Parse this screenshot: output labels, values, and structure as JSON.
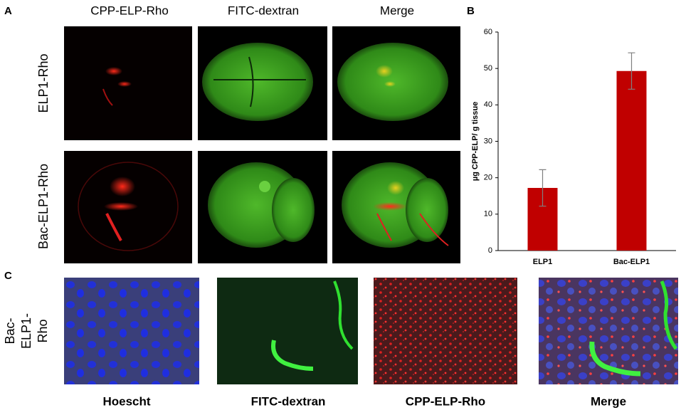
{
  "panel_labels": [
    "A",
    "B",
    "C"
  ],
  "panel_a": {
    "columns": [
      "CPP-ELP-Rho",
      "FITC-dextran",
      "Merge"
    ],
    "rows": [
      "ELP1-Rho",
      "Bac-ELP1-Rho"
    ]
  },
  "panel_c": {
    "row_label_lines": [
      "Bac-",
      "ELP1-",
      "Rho"
    ],
    "columns": [
      "Hoescht",
      "FITC-dextran",
      "CPP-ELP-Rho",
      "Merge"
    ]
  },
  "chart_data": {
    "type": "bar",
    "y_label": "µg CPP-ELP/ g tissue",
    "categories": [
      "ELP1",
      "Bac-ELP1"
    ],
    "values": [
      17.2,
      49.3
    ],
    "errors": [
      5,
      5
    ],
    "color": "#c00000",
    "error_color": "#808080",
    "ylim": [
      0,
      60
    ],
    "yticks": [
      0,
      10,
      20,
      30,
      40,
      50,
      60
    ]
  }
}
